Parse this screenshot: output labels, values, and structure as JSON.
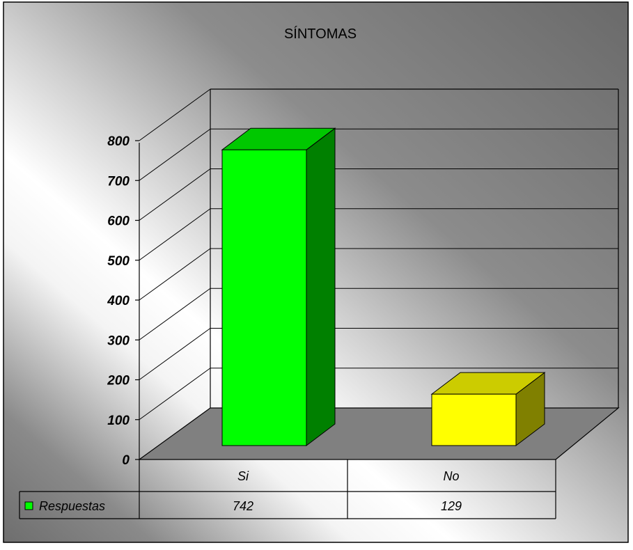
{
  "chart_data": {
    "type": "bar",
    "title": "SÍNTOMAS",
    "categories": [
      "Si",
      "No"
    ],
    "series": [
      {
        "name": "Respuestas",
        "values": [
          742,
          129
        ],
        "colors": [
          "#00ff00",
          "#ffff00"
        ]
      }
    ],
    "value_labels": [
      "742",
      "129"
    ],
    "ylim": [
      0,
      800
    ],
    "yticks": [
      0,
      100,
      200,
      300,
      400,
      500,
      600,
      700,
      800
    ],
    "ytick_labels": [
      "0",
      "100",
      "200",
      "300",
      "400",
      "500",
      "600",
      "700",
      "800"
    ],
    "grid": true,
    "legend": "data-table",
    "three_d": true
  },
  "colors": {
    "background_dark": "#6e6e6e",
    "background_light": "#ffffff",
    "floor": "#808080",
    "si_front": "#00ff00",
    "si_top": "#00c800",
    "si_side": "#008000",
    "no_front": "#ffff00",
    "no_top": "#cccc00",
    "no_side": "#808000"
  }
}
